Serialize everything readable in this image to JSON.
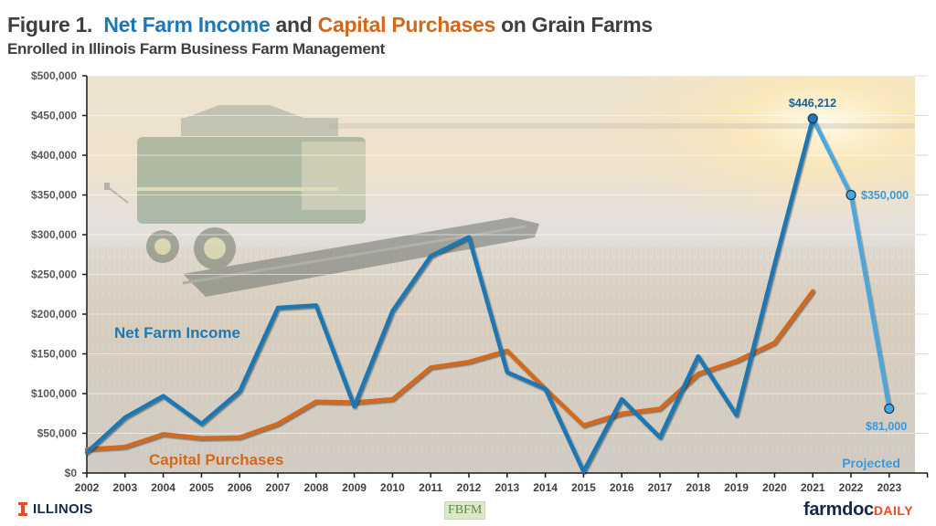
{
  "header": {
    "figure_label": "Figure 1.",
    "title_part1": "Net Farm Income",
    "title_connector": "and",
    "title_part2": "Capital Purchases",
    "title_suffix": "on Grain Farms",
    "subtitle": "Enrolled in Illinois Farm Business Farm Management"
  },
  "labels": {
    "net_farm_income": "Net Farm Income",
    "capital_purchases": "Capital Purchases",
    "projected": "Projected",
    "annot_2021": "$446,212",
    "annot_2022": "$350,000",
    "annot_2023": "$81,000"
  },
  "colors": {
    "net_farm_income": "#1f78b4",
    "projected": "#4aa8e0",
    "capital_purchases": "#d4681a",
    "axis_text": "#595959",
    "title_text": "#3f3f3f"
  },
  "footer": {
    "illinois_logo": "ILLINOIS",
    "fbfm_logo": "FBFM",
    "farmdoc_main": "farmdoc",
    "farmdoc_daily": "DAILY"
  },
  "chart_data": {
    "type": "line",
    "title": "Figure 1. Net Farm Income and Capital Purchases on Grain Farms",
    "subtitle": "Enrolled in Illinois Farm Business Farm Management",
    "xlabel": "",
    "ylabel": "",
    "ylim": [
      0,
      500000
    ],
    "yticks": [
      "$0",
      "$50,000",
      "$100,000",
      "$150,000",
      "$200,000",
      "$250,000",
      "$300,000",
      "$350,000",
      "$400,000",
      "$450,000",
      "$500,000"
    ],
    "categories": [
      "2002",
      "2003",
      "2004",
      "2005",
      "2006",
      "2007",
      "2008",
      "2009",
      "2010",
      "2011",
      "2012",
      "2013",
      "2014",
      "2015",
      "2016",
      "2017",
      "2018",
      "2019",
      "2020",
      "2021",
      "2022",
      "2023"
    ],
    "grid": true,
    "legend_position": "inline labels",
    "series": [
      {
        "name": "Net Farm Income",
        "years": [
          2002,
          2003,
          2004,
          2005,
          2006,
          2007,
          2008,
          2009,
          2010,
          2011,
          2012,
          2013,
          2014,
          2015,
          2016,
          2017,
          2018,
          2019,
          2020,
          2021
        ],
        "values": [
          26000,
          70000,
          97000,
          62000,
          103000,
          208000,
          211000,
          84000,
          204000,
          273000,
          297000,
          127000,
          106000,
          2000,
          93000,
          45000,
          147000,
          73000,
          263000,
          446212
        ]
      },
      {
        "name": "Net Farm Income (Projected)",
        "years": [
          2021,
          2022,
          2023
        ],
        "values": [
          446212,
          350000,
          81000
        ]
      },
      {
        "name": "Capital Purchases",
        "years": [
          2002,
          2003,
          2004,
          2005,
          2006,
          2007,
          2008,
          2009,
          2010,
          2011,
          2012,
          2013,
          2014,
          2015,
          2016,
          2017,
          2018,
          2019,
          2020,
          2021
        ],
        "values": [
          30000,
          33000,
          49000,
          44000,
          45000,
          62000,
          90000,
          89000,
          93000,
          133000,
          140000,
          154000,
          106000,
          60000,
          75000,
          81000,
          125000,
          141000,
          164000,
          229000
        ]
      }
    ],
    "annotations": [
      "$446,212",
      "$350,000",
      "$81,000",
      "Projected",
      "Net Farm Income",
      "Capital Purchases"
    ]
  }
}
